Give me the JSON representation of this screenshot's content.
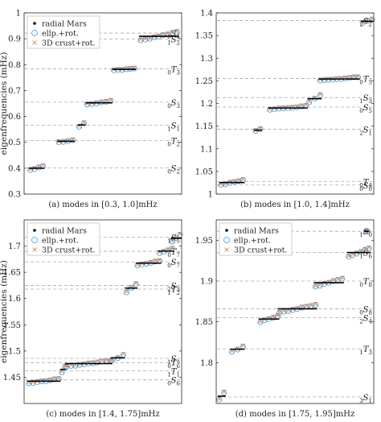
{
  "ylabel": "eigenfrequencies (mHz)",
  "legend": [
    {
      "label": "radial Mars",
      "marker": "dot",
      "color": "#000000"
    },
    {
      "label": "ellp.+rot.",
      "marker": "circle",
      "color": "#3a9ad9"
    },
    {
      "label": "3D crust+rot.",
      "marker": "cross",
      "color": "#e0703a"
    }
  ],
  "chart_data": [
    {
      "type": "scatter",
      "caption": "(a) modes in [0.3, 1.0]mHz",
      "ylim": [
        0.3,
        1.0
      ],
      "yticks": [
        "0.3",
        "0.4",
        "0.5",
        "0.6",
        "0.7",
        "0.8",
        "0.9",
        "1"
      ],
      "grid": false,
      "legend_position": "top-left",
      "modes": [
        {
          "label": "0S4",
          "pre": "0",
          "main": "S",
          "sub": "4",
          "y": 0.922
        },
        {
          "label": "1S2",
          "pre": "1",
          "main": "S",
          "sub": "2",
          "y": 0.899
        },
        {
          "label": "0T3",
          "pre": "0",
          "main": "T",
          "sub": "3",
          "y": 0.784
        },
        {
          "label": "0S3",
          "pre": "0",
          "main": "S",
          "sub": "3",
          "y": 0.655
        },
        {
          "label": "1S1",
          "pre": "1",
          "main": "S",
          "sub": "1",
          "y": 0.566
        },
        {
          "label": "0T2",
          "pre": "0",
          "main": "T",
          "sub": "2",
          "y": 0.507
        },
        {
          "label": "0S2",
          "pre": "0",
          "main": "S",
          "sub": "2",
          "y": 0.401
        }
      ],
      "clusters": [
        {
          "x": [
            0.04,
            0.12
          ],
          "y": [
            0.392,
            0.408
          ]
        },
        {
          "x": [
            0.22,
            0.31
          ],
          "y": [
            0.5,
            0.508
          ]
        },
        {
          "x": [
            0.35,
            0.38
          ],
          "y": [
            0.56,
            0.574
          ]
        },
        {
          "x": [
            0.4,
            0.55
          ],
          "y": [
            0.645,
            0.66
          ]
        },
        {
          "x": [
            0.57,
            0.7
          ],
          "y": [
            0.778,
            0.786
          ]
        },
        {
          "x": [
            0.74,
            0.97
          ],
          "y": [
            0.893,
            0.926
          ]
        }
      ]
    },
    {
      "type": "scatter",
      "caption": "(b) modes in [1.0, 1.4]mHz",
      "ylim": [
        1.0,
        1.4
      ],
      "yticks": [
        "1",
        "1.05",
        "1.1",
        "1.15",
        "1.2",
        "1.25",
        "1.3",
        "1.35",
        "1.4"
      ],
      "grid": false,
      "modes": [
        {
          "label": "2S2",
          "pre": "2",
          "main": "S",
          "sub": "2",
          "y": 1.383
        },
        {
          "label": "0T5",
          "pre": "0",
          "main": "T",
          "sub": "5",
          "y": 1.255
        },
        {
          "label": "1S3",
          "pre": "1",
          "main": "S",
          "sub": "3",
          "y": 1.213
        },
        {
          "label": "0S5",
          "pre": "0",
          "main": "S",
          "sub": "5",
          "y": 1.192
        },
        {
          "label": "2S1",
          "pre": "2",
          "main": "S",
          "sub": "1",
          "y": 1.143
        },
        {
          "label": "0T4",
          "pre": "0",
          "main": "T",
          "sub": "4",
          "y": 1.028
        },
        {
          "label": "0S0",
          "pre": "0",
          "main": "S",
          "sub": "0",
          "y": 1.02
        }
      ],
      "clusters": [
        {
          "x": [
            0.03,
            0.17
          ],
          "y": [
            1.02,
            1.031
          ]
        },
        {
          "x": [
            0.25,
            0.28
          ],
          "y": [
            1.139,
            1.143
          ]
        },
        {
          "x": [
            0.34,
            0.57
          ],
          "y": [
            1.186,
            1.194
          ]
        },
        {
          "x": [
            0.59,
            0.66
          ],
          "y": [
            1.203,
            1.218
          ]
        },
        {
          "x": [
            0.66,
            0.9
          ],
          "y": [
            1.25,
            1.258
          ]
        },
        {
          "x": [
            0.93,
            0.99
          ],
          "y": [
            1.378,
            1.385
          ]
        }
      ]
    },
    {
      "type": "scatter",
      "caption": "(c) modes in [1.4, 1.75]mHz",
      "ylim": [
        1.4,
        1.75
      ],
      "yticks": [
        "1.45",
        "1.5",
        "1.55",
        "1.6",
        "1.65",
        "1.7"
      ],
      "grid": false,
      "legend_position": "top-left",
      "modes": [
        {
          "label": "1S5",
          "pre": "1",
          "main": "S",
          "sub": "5",
          "y": 1.717
        },
        {
          "label": "0T7",
          "pre": "0",
          "main": "T",
          "sub": "7",
          "y": 1.69
        },
        {
          "label": "0S7",
          "pre": "0",
          "main": "S",
          "sub": "7",
          "y": 1.67
        },
        {
          "label": "2S3",
          "pre": "2",
          "main": "S",
          "sub": "3",
          "y": 1.625
        },
        {
          "label": "1T2",
          "pre": "1",
          "main": "T",
          "sub": "2",
          "y": 1.618
        },
        {
          "label": "1S4",
          "pre": "1",
          "main": "S",
          "sub": "4",
          "y": 1.486
        },
        {
          "label": "0T6",
          "pre": "0",
          "main": "T",
          "sub": "6",
          "y": 1.478
        },
        {
          "label": "1T1",
          "pre": "1",
          "main": "T",
          "sub": "1",
          "y": 1.462
        },
        {
          "label": "0S6",
          "pre": "0",
          "main": "S",
          "sub": "6",
          "y": 1.445
        }
      ],
      "clusters": [
        {
          "x": [
            0.03,
            0.22
          ],
          "y": [
            1.438,
            1.447
          ]
        },
        {
          "x": [
            0.24,
            0.26
          ],
          "y": [
            1.46,
            1.47
          ]
        },
        {
          "x": [
            0.27,
            0.55
          ],
          "y": [
            1.47,
            1.482
          ]
        },
        {
          "x": [
            0.56,
            0.63
          ],
          "y": [
            1.482,
            1.492
          ]
        },
        {
          "x": [
            0.65,
            0.71
          ],
          "y": [
            1.612,
            1.628
          ]
        },
        {
          "x": [
            0.72,
            0.86
          ],
          "y": [
            1.663,
            1.672
          ]
        },
        {
          "x": [
            0.86,
            0.94
          ],
          "y": [
            1.686,
            1.695
          ]
        },
        {
          "x": [
            0.94,
            0.99
          ],
          "y": [
            1.708,
            1.722
          ]
        }
      ]
    },
    {
      "type": "scatter",
      "caption": "(d) modes in [1.75, 1.95]mHz",
      "ylim": [
        1.75,
        1.975
      ],
      "yticks": [
        "1.8",
        "1.85",
        "1.9",
        "1.95"
      ],
      "grid": false,
      "legend_position": "top-left",
      "modes": [
        {
          "label": "1S0",
          "pre": "1",
          "main": "S",
          "sub": "0",
          "y": 1.961
        },
        {
          "label": "1S6",
          "pre": "1",
          "main": "S",
          "sub": "6",
          "y": 1.935
        },
        {
          "label": "0T8",
          "pre": "0",
          "main": "T",
          "sub": "8",
          "y": 1.9
        },
        {
          "label": "0S8",
          "pre": "0",
          "main": "S",
          "sub": "8",
          "y": 1.866
        },
        {
          "label": "2S4",
          "pre": "2",
          "main": "S",
          "sub": "4",
          "y": 1.855
        },
        {
          "label": "1T3",
          "pre": "1",
          "main": "T",
          "sub": "3",
          "y": 1.817
        },
        {
          "label": "3S1",
          "pre": "3",
          "main": "S",
          "sub": "1",
          "y": 1.758
        }
      ],
      "clusters": [
        {
          "x": [
            0.02,
            0.05
          ],
          "y": [
            1.755,
            1.763
          ]
        },
        {
          "x": [
            0.1,
            0.17
          ],
          "y": [
            1.813,
            1.82
          ]
        },
        {
          "x": [
            0.28,
            0.39
          ],
          "y": [
            1.85,
            1.857
          ]
        },
        {
          "x": [
            0.4,
            0.63
          ],
          "y": [
            1.861,
            1.871
          ]
        },
        {
          "x": [
            0.63,
            0.8
          ],
          "y": [
            1.893,
            1.903
          ]
        },
        {
          "x": [
            0.84,
            0.97
          ],
          "y": [
            1.93,
            1.94
          ]
        },
        {
          "x": [
            0.95,
            0.96
          ],
          "y": [
            1.961,
            1.961
          ]
        }
      ]
    }
  ]
}
